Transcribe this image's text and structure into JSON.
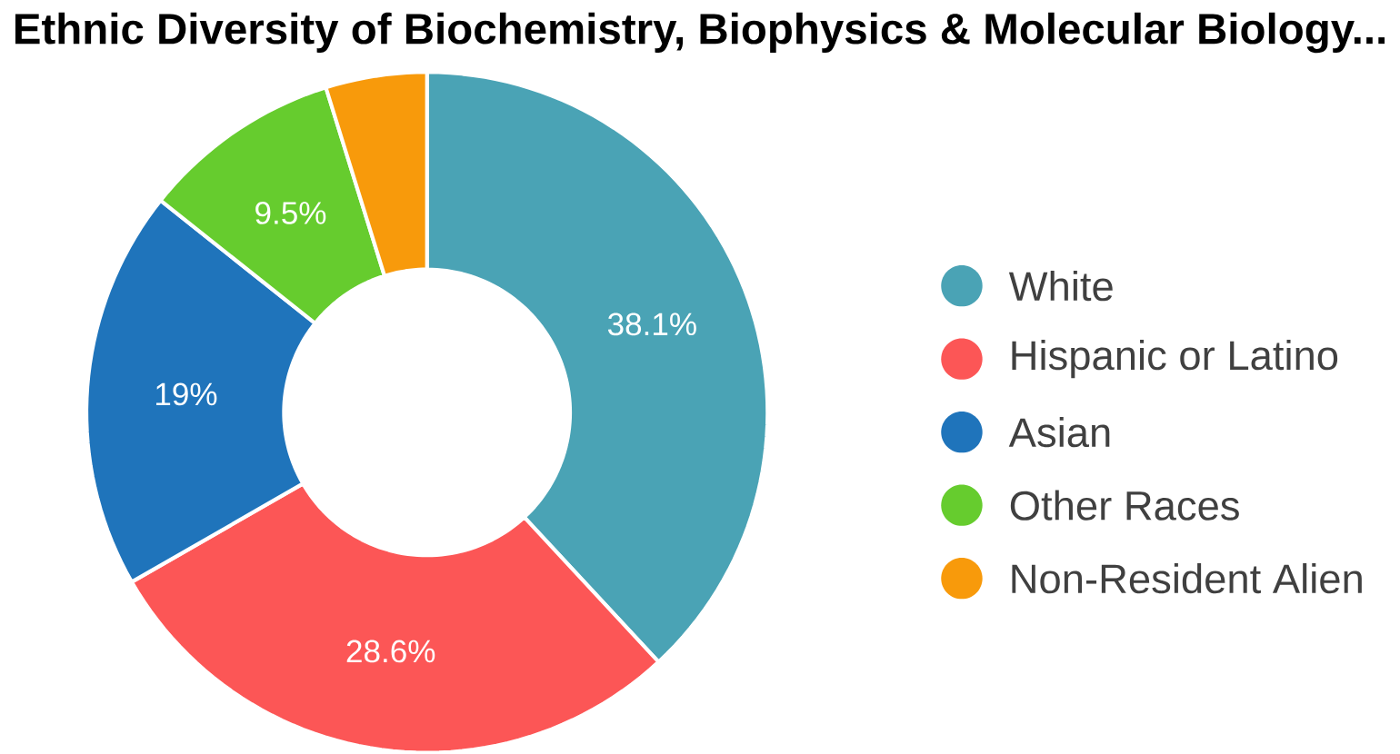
{
  "chart_data": {
    "type": "donut",
    "title": "Ethnic Diversity of Biochemistry, Biophysics & Molecular Biology...",
    "categories": [
      "White",
      "Hispanic or Latino",
      "Asian",
      "Other Races",
      "Non-Resident Alien"
    ],
    "values": [
      38.1,
      28.6,
      19,
      9.5,
      4.8
    ],
    "value_labels": [
      "38.1%",
      "28.6%",
      "19%",
      "9.5%",
      null
    ],
    "colors": [
      "#4aa3b5",
      "#fc5656",
      "#1f74bb",
      "#66cc2e",
      "#f89a0b"
    ],
    "legend": "right"
  }
}
